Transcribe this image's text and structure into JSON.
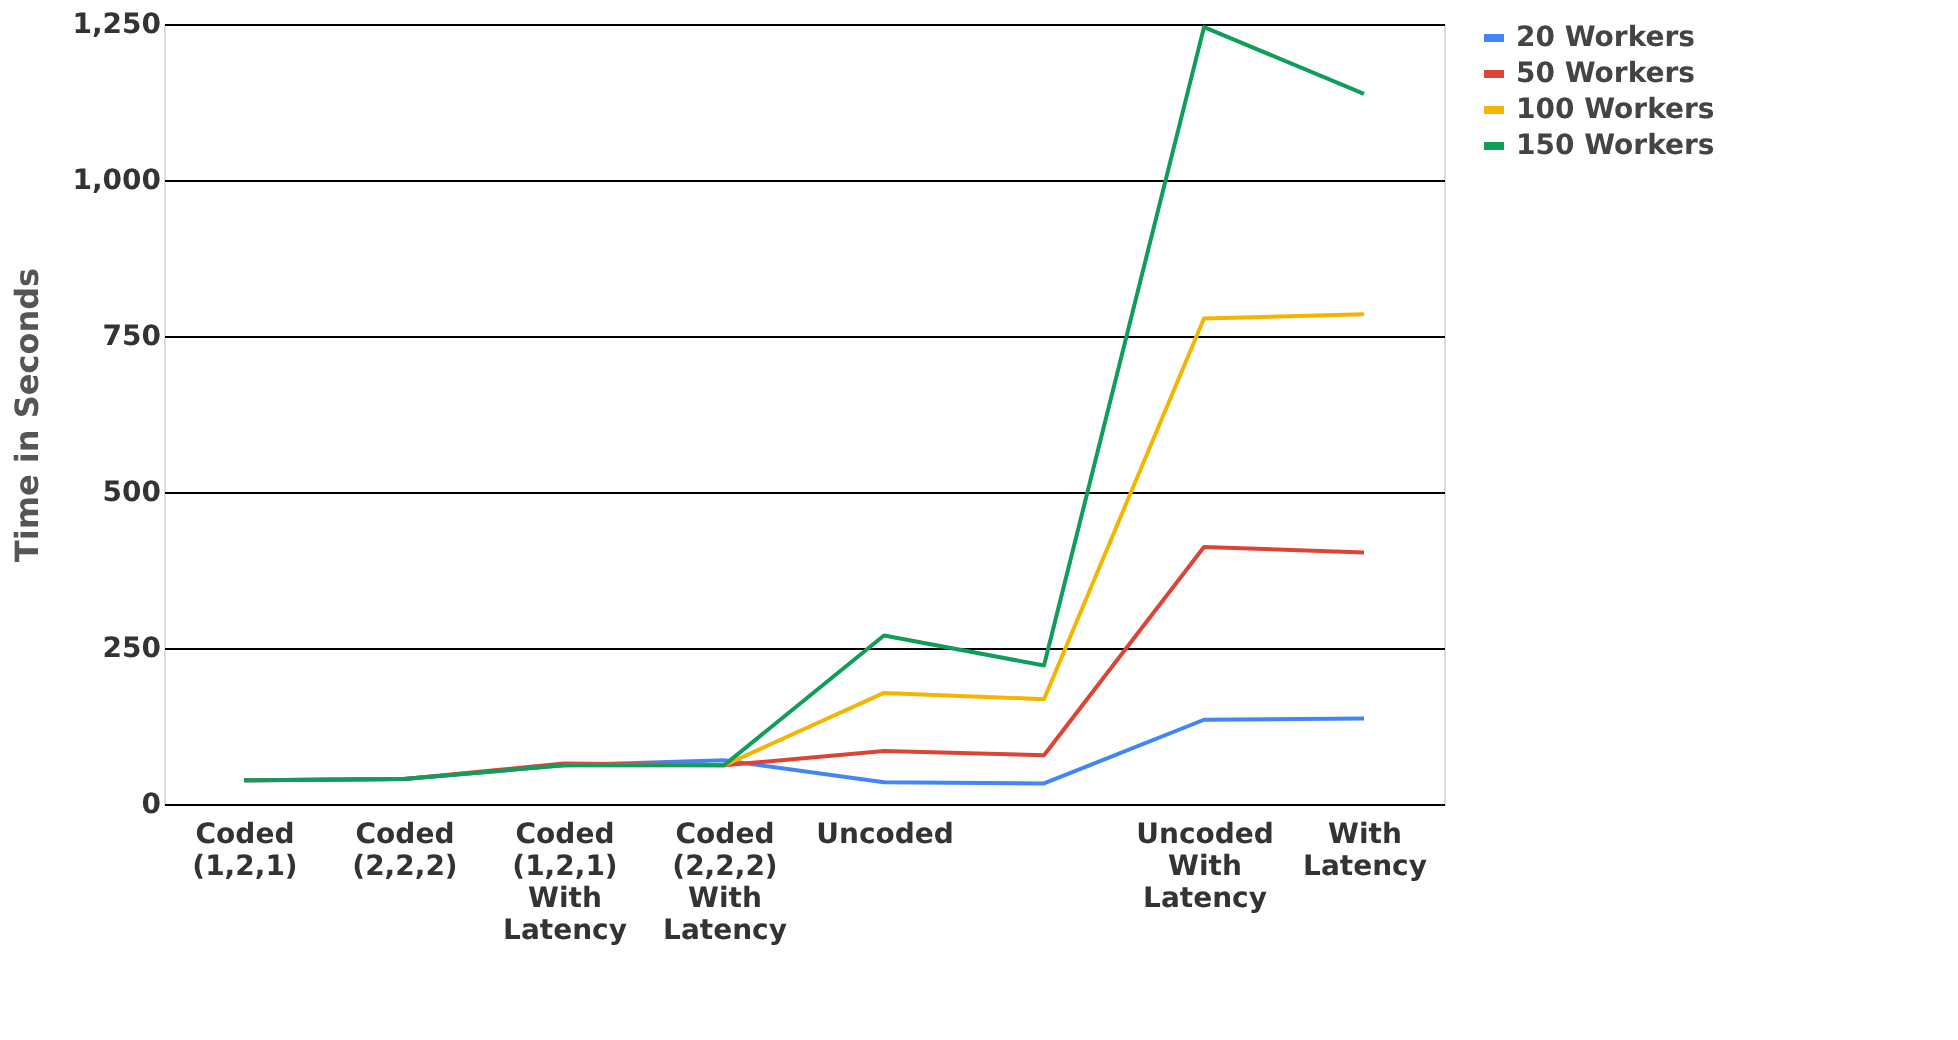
{
  "chart_data": {
    "type": "line",
    "ylabel": "Time in Seconds",
    "categories": [
      "Coded (1,2,1)",
      "Coded (2,2,2)",
      "Coded (1,2,1) With Latency",
      "Coded (2,2,2) With Latency",
      "Uncoded",
      null,
      "Uncoded With Latency",
      "With Latency"
    ],
    "series": [
      {
        "name": "20 Workers",
        "color": "#4285f4",
        "values": [
          38,
          40,
          62,
          70,
          35,
          33,
          135,
          137
        ]
      },
      {
        "name": "50 Workers",
        "color": "#db4437",
        "values": [
          38,
          40,
          65,
          62,
          85,
          78,
          412,
          403
        ]
      },
      {
        "name": "100 Workers",
        "color": "#f4b400",
        "values": [
          null,
          null,
          62,
          62,
          178,
          168,
          778,
          785
        ]
      },
      {
        "name": "150 Workers",
        "color": "#0f9d58",
        "values": [
          38,
          40,
          62,
          62,
          270,
          222,
          1245,
          1138
        ]
      }
    ],
    "ylim": [
      0,
      1250
    ],
    "yticks": [
      0,
      250,
      500,
      750,
      {
        "value": 1000,
        "label": "1,000"
      },
      {
        "value": 1250,
        "label": "1,250"
      }
    ],
    "grid": "y",
    "legend": "top right",
    "marker": "none",
    "line_style": "solid"
  }
}
